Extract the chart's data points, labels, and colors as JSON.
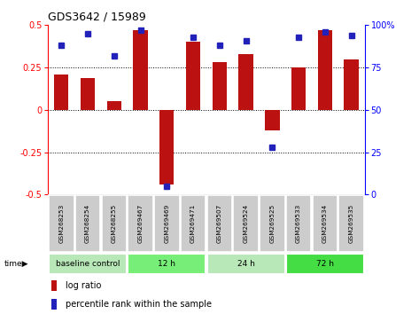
{
  "title": "GDS3642 / 15989",
  "samples": [
    "GSM268253",
    "GSM268254",
    "GSM268255",
    "GSM269467",
    "GSM269469",
    "GSM269471",
    "GSM269507",
    "GSM269524",
    "GSM269525",
    "GSM269533",
    "GSM269534",
    "GSM269535"
  ],
  "log_ratio": [
    0.21,
    0.19,
    0.05,
    0.47,
    -0.44,
    0.4,
    0.28,
    0.33,
    -0.12,
    0.25,
    0.47,
    0.3
  ],
  "percentile_rank": [
    88,
    95,
    82,
    97,
    5,
    93,
    88,
    91,
    28,
    93,
    96,
    94
  ],
  "groups": [
    {
      "label": "baseline control",
      "start": 0,
      "end": 3,
      "color": "#b8e8b8"
    },
    {
      "label": "12 h",
      "start": 3,
      "end": 6,
      "color": "#77ee77"
    },
    {
      "label": "24 h",
      "start": 6,
      "end": 9,
      "color": "#b8e8b8"
    },
    {
      "label": "72 h",
      "start": 9,
      "end": 12,
      "color": "#44dd44"
    }
  ],
  "bar_color": "#bb1111",
  "dot_color": "#2222bb",
  "ylim": [
    -0.5,
    0.5
  ],
  "y2lim": [
    0,
    100
  ],
  "yticks": [
    -0.5,
    -0.25,
    0,
    0.25,
    0.5
  ],
  "y2ticks": [
    0,
    25,
    50,
    75,
    100
  ],
  "hlines": [
    0.25,
    0,
    -0.25
  ],
  "bar_width": 0.55,
  "sample_box_color": "#cccccc",
  "bg_color": "#ffffff"
}
